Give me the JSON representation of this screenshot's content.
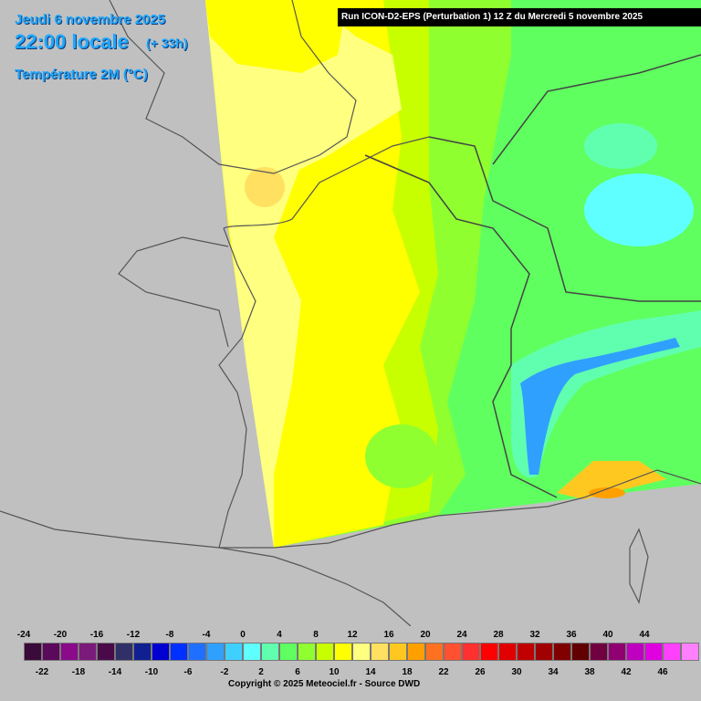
{
  "header": {
    "date": "Jeudi 6 novembre 2025",
    "time": "22:00 locale",
    "offset": "(+ 33h)",
    "parameter": "Température 2M (°C)",
    "run": "Run ICON-D2-EPS (Perturbation 1) 12 Z du Mercredi 5 novembre 2025"
  },
  "legend": {
    "upper_labels": [
      "-24",
      "-20",
      "-16",
      "-12",
      "-8",
      "-4",
      "0",
      "4",
      "8",
      "12",
      "16",
      "20",
      "24",
      "28",
      "32",
      "36",
      "40",
      "44"
    ],
    "lower_labels": [
      "-22",
      "-18",
      "-14",
      "-10",
      "-6",
      "-2",
      "2",
      "6",
      "10",
      "14",
      "18",
      "22",
      "26",
      "30",
      "34",
      "38",
      "42",
      "46"
    ],
    "colors": [
      "#3a0a3a",
      "#5a0a5a",
      "#8a0a8a",
      "#7a1a7a",
      "#4a0a4a",
      "#303068",
      "#102090",
      "#0000d0",
      "#0030ff",
      "#2070ff",
      "#30a0ff",
      "#40d0ff",
      "#60ffff",
      "#60ffb0",
      "#60ff60",
      "#90ff30",
      "#c8ff00",
      "#ffff00",
      "#ffff80",
      "#ffe060",
      "#ffc820",
      "#ffa000",
      "#ff7020",
      "#ff5030",
      "#ff3030",
      "#ff0000",
      "#e00000",
      "#c00000",
      "#a00000",
      "#800000",
      "#600000",
      "#700040",
      "#900070",
      "#c000c0",
      "#e000e0",
      "#ff40ff",
      "#ff80ff"
    ]
  },
  "copyright": "Copyright © 2025 Meteociel.fr - Source DWD",
  "map": {
    "regions": [
      {
        "name": "western-france",
        "color": "#ffff80"
      },
      {
        "name": "central-france",
        "color": "#ffff00"
      },
      {
        "name": "germany-east",
        "color": "#60ff60"
      },
      {
        "name": "alps",
        "color": "#40d0ff"
      },
      {
        "name": "mediterranean",
        "color": "#ffc820"
      }
    ]
  }
}
